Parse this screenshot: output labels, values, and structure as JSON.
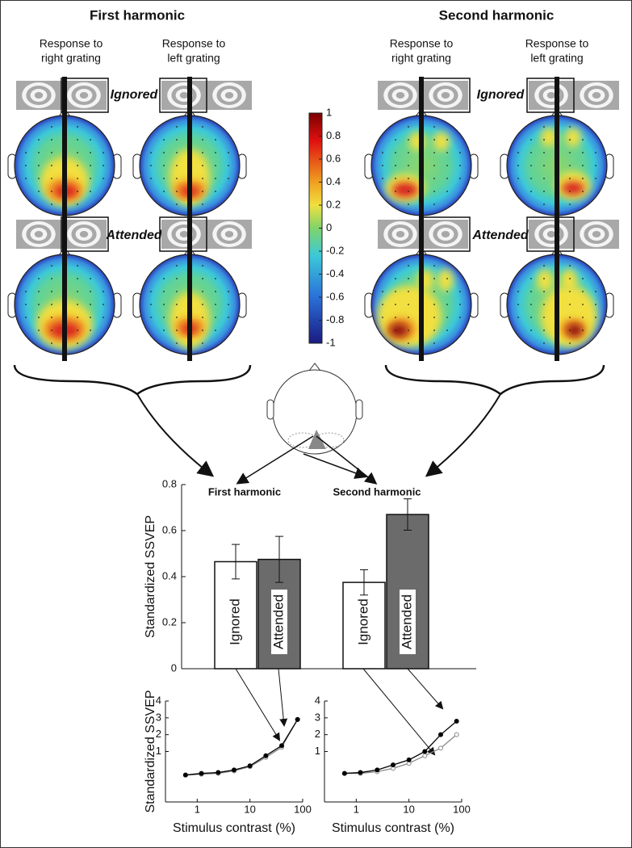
{
  "figure": {
    "headings": [
      "First harmonic",
      "Second harmonic"
    ],
    "columns": [
      [
        "Response to",
        "right grating"
      ],
      [
        "Response to",
        "left grating"
      ],
      [
        "Response to",
        "right grating"
      ],
      [
        "Response to",
        "left grating"
      ]
    ],
    "conditions": [
      "Ignored",
      "Attended"
    ]
  },
  "chart_data": [
    {
      "type": "bar",
      "ylabel": "Standardized SSVEP",
      "categories": [
        "First harmonic",
        "Second harmonic"
      ],
      "series": [
        {
          "name": "Ignored",
          "color": "#ffffff",
          "values": [
            0.465,
            0.375
          ],
          "errors": [
            0.075,
            0.055
          ]
        },
        {
          "name": "Attended",
          "color": "#6b6b6b",
          "values": [
            0.475,
            0.67
          ],
          "errors": [
            0.1,
            0.068
          ]
        }
      ],
      "ylim": [
        0,
        0.8
      ],
      "yticks": [
        0,
        0.2,
        0.4,
        0.6,
        0.8
      ]
    },
    {
      "type": "line",
      "xlabel": "Stimulus contrast (%)",
      "ylabel": "Standardized SSVEP",
      "xscale": "log",
      "x": [
        0.6,
        1.2,
        2.5,
        5,
        10,
        20,
        40,
        80
      ],
      "xlim": [
        0.25,
        100
      ],
      "xticks": [
        1,
        10,
        100
      ],
      "ylim": [
        -2,
        4
      ],
      "yticks": [
        1,
        2,
        3,
        4
      ],
      "series": [
        {
          "color": "#888888",
          "values": [
            -0.4,
            -0.35,
            -0.3,
            -0.15,
            0.1,
            0.65,
            1.25,
            2.9
          ]
        },
        {
          "color": "#000000",
          "values": [
            -0.4,
            -0.3,
            -0.25,
            -0.1,
            0.15,
            0.75,
            1.35,
            2.9
          ]
        }
      ]
    },
    {
      "type": "line",
      "xlabel": "Stimulus contrast (%)",
      "xscale": "log",
      "x": [
        0.6,
        1.2,
        2.5,
        5,
        10,
        20,
        40,
        80
      ],
      "xlim": [
        0.25,
        100
      ],
      "xticks": [
        1,
        10,
        100
      ],
      "ylim": [
        -2,
        4
      ],
      "yticks": [
        1,
        2,
        3,
        4
      ],
      "series": [
        {
          "color": "#888888",
          "values": [
            -0.3,
            -0.3,
            -0.2,
            0,
            0.3,
            0.75,
            1.2,
            2
          ]
        },
        {
          "color": "#000000",
          "values": [
            -0.3,
            -0.25,
            -0.1,
            0.2,
            0.5,
            1,
            2,
            2.8
          ]
        }
      ]
    },
    {
      "type": "colorbar",
      "ylim": [
        -1,
        1
      ],
      "yticks": [
        1,
        0.8,
        0.6,
        0.4,
        0.2,
        0,
        -0.2,
        -0.4,
        -0.6,
        -0.8,
        -1
      ]
    }
  ]
}
